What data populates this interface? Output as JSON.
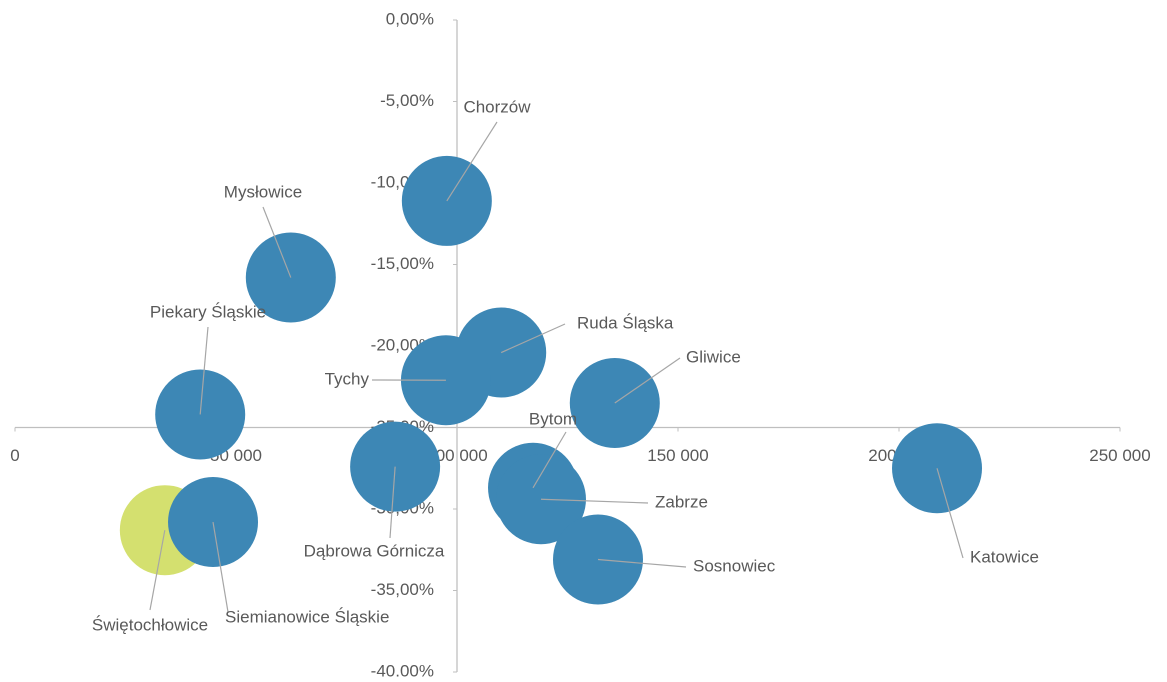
{
  "chart_data": {
    "type": "scatter",
    "xlim": [
      0,
      250000
    ],
    "xticks": [
      0,
      {
        "value": 50000,
        "label": "50 000"
      },
      {
        "value": 100000,
        "label": "100 000"
      },
      {
        "value": 150000,
        "label": "150 000"
      },
      {
        "value": 200000,
        "label": "200 000"
      },
      {
        "value": 250000,
        "label": "250 000"
      }
    ],
    "ylim": [
      -40,
      0
    ],
    "yticks": [
      {
        "value": 0,
        "label": "0,00%"
      },
      {
        "value": -5,
        "label": "-5,00%"
      },
      {
        "value": -10,
        "label": "-10,00%"
      },
      {
        "value": -15,
        "label": "-15,00%"
      },
      {
        "value": -20,
        "label": "-20,00%"
      },
      {
        "value": -25,
        "label": "-25,00%"
      },
      {
        "value": -30,
        "label": "-30,00%"
      },
      {
        "value": -35,
        "label": "-35,00%"
      },
      {
        "value": -40,
        "label": "-40.00%"
      }
    ],
    "xaxis_crosses": -25,
    "yaxis_crosses": 100000,
    "series": [
      {
        "labels": [
          "Chorzów",
          "Mysłowice",
          "Piekary Śląskie",
          "Ruda Śląska",
          "Tychy",
          "Gliwice",
          "Bytom",
          "Zabrze",
          "Dąbrowa Górnicza",
          "Sosnowiec",
          "Katowice",
          "Świętochłowice",
          "Siemianowice Śląskie"
        ],
        "x": [
          97700,
          62400,
          41900,
          110000,
          97500,
          135700,
          117200,
          119000,
          86000,
          131900,
          208600,
          33900,
          44800
        ],
        "values": [
          -11.1,
          -15.8,
          -24.2,
          -20.4,
          -22.1,
          -23.5,
          -28.7,
          -29.4,
          -27.4,
          -33.1,
          -27.5,
          -31.3,
          -30.8
        ],
        "colors": [
          "#3d87b5",
          "#3d87b5",
          "#3d87b5",
          "#3d87b5",
          "#3d87b5",
          "#3d87b5",
          "#3d87b5",
          "#3d87b5",
          "#3d87b5",
          "#3d87b5",
          "#3d87b5",
          "#d4e06f",
          "#3d87b5"
        ]
      }
    ]
  }
}
